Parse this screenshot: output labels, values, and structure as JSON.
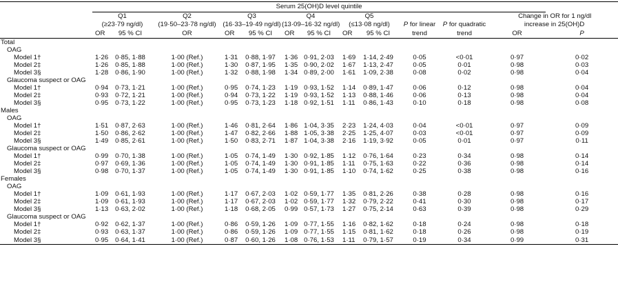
{
  "header": {
    "group_title": "Serum 25(OH)D level quintile",
    "q1": {
      "name": "Q1",
      "range": "(≥23·79 ng/dl)"
    },
    "q2": {
      "name": "Q2",
      "range": "(19·50–23·78 ng/dl)"
    },
    "q3": {
      "name": "Q3",
      "range": "(16·33–19·49 ng/dl)"
    },
    "q4": {
      "name": "Q4",
      "range": "(13·09–16·32 ng/dl)"
    },
    "q5": {
      "name": "Q5",
      "range": "(≤13·08 ng/dl)"
    },
    "p_letter": "P",
    "p_linear_line1": "for linear",
    "p_linear_line2": "trend",
    "p_quad_line1": "for quadratic",
    "p_quad_line2": "trend",
    "change_line1": "Change in OR for 1 ng/dl",
    "change_line2": "increase in 25(OH)D",
    "or_label": "OR",
    "ci_label": "95 % CI"
  },
  "rows": [
    {
      "kind": "group",
      "label": "Total"
    },
    {
      "kind": "sub",
      "label": "OAG"
    },
    {
      "kind": "data",
      "label": "Model 1†",
      "q1_or": "1·26",
      "q1_ci": "0·85, 1·88",
      "q2": "1·00 (Ref.)",
      "q3_or": "1·31",
      "q3_ci": "0·88, 1·97",
      "q4_or": "1·36",
      "q4_ci": "0·91, 2·03",
      "q5_or": "1·69",
      "q5_ci": "1·14, 2·49",
      "p_lin": "0·05",
      "p_quad": "<0·01",
      "chg_or": "0·97",
      "chg_p": "0·02"
    },
    {
      "kind": "data",
      "label": "Model 2‡",
      "q1_or": "1·26",
      "q1_ci": "0·85, 1·88",
      "q2": "1·00 (Ref.)",
      "q3_or": "1·30",
      "q3_ci": "0·87, 1·95",
      "q4_or": "1·35",
      "q4_ci": "0·90, 2·02",
      "q5_or": "1·67",
      "q5_ci": "1·13, 2·47",
      "p_lin": "0·05",
      "p_quad": "0·01",
      "chg_or": "0·98",
      "chg_p": "0·03"
    },
    {
      "kind": "data",
      "label": "Model 3§",
      "q1_or": "1·28",
      "q1_ci": "0·86, 1·90",
      "q2": "1·00 (Ref.)",
      "q3_or": "1·32",
      "q3_ci": "0·88, 1·98",
      "q4_or": "1·34",
      "q4_ci": "0·89, 2·00",
      "q5_or": "1·61",
      "q5_ci": "1·09, 2·38",
      "p_lin": "0·08",
      "p_quad": "0·02",
      "chg_or": "0·98",
      "chg_p": "0·04"
    },
    {
      "kind": "sub",
      "label": "Glaucoma suspect or OAG"
    },
    {
      "kind": "data",
      "label": "Model 1†",
      "q1_or": "0·94",
      "q1_ci": "0·73, 1·21",
      "q2": "1·00 (Ref.)",
      "q3_or": "0·95",
      "q3_ci": "0·74, 1·23",
      "q4_or": "1·19",
      "q4_ci": "0·93, 1·52",
      "q5_or": "1·14",
      "q5_ci": "0·89, 1·47",
      "p_lin": "0·06",
      "p_quad": "0·12",
      "chg_or": "0·98",
      "chg_p": "0·04"
    },
    {
      "kind": "data",
      "label": "Model 2‡",
      "q1_or": "0·93",
      "q1_ci": "0·72, 1·21",
      "q2": "1·00 (Ref.)",
      "q3_or": "0·94",
      "q3_ci": "0·73, 1·22",
      "q4_or": "1·19",
      "q4_ci": "0·93, 1·52",
      "q5_or": "1·13",
      "q5_ci": "0·88, 1·46",
      "p_lin": "0·06",
      "p_quad": "0·13",
      "chg_or": "0·98",
      "chg_p": "0·04"
    },
    {
      "kind": "data",
      "label": "Model 3§",
      "q1_or": "0·95",
      "q1_ci": "0·73, 1·22",
      "q2": "1·00 (Ref.)",
      "q3_or": "0·95",
      "q3_ci": "0·73, 1·23",
      "q4_or": "1·18",
      "q4_ci": "0·92, 1·51",
      "q5_or": "1·11",
      "q5_ci": "0·86, 1·43",
      "p_lin": "0·10",
      "p_quad": "0·18",
      "chg_or": "0·98",
      "chg_p": "0·08"
    },
    {
      "kind": "group",
      "label": "Males"
    },
    {
      "kind": "sub",
      "label": "OAG"
    },
    {
      "kind": "data",
      "label": "Model 1†",
      "q1_or": "1·51",
      "q1_ci": "0·87, 2·63",
      "q2": "1·00 (Ref.)",
      "q3_or": "1·46",
      "q3_ci": "0·81, 2·64",
      "q4_or": "1·86",
      "q4_ci": "1·04, 3·35",
      "q5_or": "2·23",
      "q5_ci": "1·24, 4·03",
      "p_lin": "0·04",
      "p_quad": "<0·01",
      "chg_or": "0·97",
      "chg_p": "0·09"
    },
    {
      "kind": "data",
      "label": "Model 2‡",
      "q1_or": "1·50",
      "q1_ci": "0·86, 2·62",
      "q2": "1·00 (Ref.)",
      "q3_or": "1·47",
      "q3_ci": "0·82, 2·66",
      "q4_or": "1·88",
      "q4_ci": "1·05, 3·38",
      "q5_or": "2·25",
      "q5_ci": "1·25, 4·07",
      "p_lin": "0·03",
      "p_quad": "<0·01",
      "chg_or": "0·97",
      "chg_p": "0·09"
    },
    {
      "kind": "data",
      "label": "Model 3§",
      "q1_or": "1·49",
      "q1_ci": "0·85, 2·61",
      "q2": "1·00 (Ref.)",
      "q3_or": "1·50",
      "q3_ci": "0·83, 2·71",
      "q4_or": "1·87",
      "q4_ci": "1·04, 3·38",
      "q5_or": "2·16",
      "q5_ci": "1·19, 3·92",
      "p_lin": "0·05",
      "p_quad": "0·01",
      "chg_or": "0·97",
      "chg_p": "0·11"
    },
    {
      "kind": "sub",
      "label": "Glaucoma suspect or OAG"
    },
    {
      "kind": "data",
      "label": "Model 1†",
      "q1_or": "0·99",
      "q1_ci": "0·70, 1·38",
      "q2": "1·00 (Ref.)",
      "q3_or": "1·05",
      "q3_ci": "0·74, 1·49",
      "q4_or": "1·30",
      "q4_ci": "0·92, 1·85",
      "q5_or": "1·12",
      "q5_ci": "0·76, 1·64",
      "p_lin": "0·23",
      "p_quad": "0·34",
      "chg_or": "0·98",
      "chg_p": "0·14"
    },
    {
      "kind": "data",
      "label": "Model 2‡",
      "q1_or": "0·97",
      "q1_ci": "0·69, 1·36",
      "q2": "1·00 (Ref.)",
      "q3_or": "1·05",
      "q3_ci": "0·74, 1·49",
      "q4_or": "1·30",
      "q4_ci": "0·91, 1·85",
      "q5_or": "1·11",
      "q5_ci": "0·75, 1·63",
      "p_lin": "0·22",
      "p_quad": "0·36",
      "chg_or": "0·98",
      "chg_p": "0·14"
    },
    {
      "kind": "data",
      "label": "Model 3§",
      "q1_or": "0·98",
      "q1_ci": "0·70, 1·37",
      "q2": "1·00 (Ref.)",
      "q3_or": "1·05",
      "q3_ci": "0·74, 1·49",
      "q4_or": "1·30",
      "q4_ci": "0·91, 1·85",
      "q5_or": "1·10",
      "q5_ci": "0·74, 1·62",
      "p_lin": "0·25",
      "p_quad": "0·38",
      "chg_or": "0·98",
      "chg_p": "0·16"
    },
    {
      "kind": "group",
      "label": "Females"
    },
    {
      "kind": "sub",
      "label": "OAG"
    },
    {
      "kind": "data",
      "label": "Model 1†",
      "q1_or": "1·09",
      "q1_ci": "0·61, 1·93",
      "q2": "1·00 (Ref.)",
      "q3_or": "1·17",
      "q3_ci": "0·67, 2·03",
      "q4_or": "1·02",
      "q4_ci": "0·59, 1·77",
      "q5_or": "1·35",
      "q5_ci": "0·81, 2·26",
      "p_lin": "0·38",
      "p_quad": "0·28",
      "chg_or": "0·98",
      "chg_p": "0·16"
    },
    {
      "kind": "data",
      "label": "Model 2‡",
      "q1_or": "1·09",
      "q1_ci": "0·61, 1·93",
      "q2": "1·00 (Ref.)",
      "q3_or": "1·17",
      "q3_ci": "0·67, 2·03",
      "q4_or": "1·02",
      "q4_ci": "0·59, 1·77",
      "q5_or": "1·32",
      "q5_ci": "0·79, 2·22",
      "p_lin": "0·41",
      "p_quad": "0·30",
      "chg_or": "0·98",
      "chg_p": "0·17"
    },
    {
      "kind": "data",
      "label": "Model 3§",
      "q1_or": "1·13",
      "q1_ci": "0·63, 2·02",
      "q2": "1·00 (Ref.)",
      "q3_or": "1·18",
      "q3_ci": "0·68, 2·05",
      "q4_or": "0·99",
      "q4_ci": "0·57, 1·73",
      "q5_or": "1·27",
      "q5_ci": "0·75, 2·14",
      "p_lin": "0·63",
      "p_quad": "0·39",
      "chg_or": "0·98",
      "chg_p": "0·29"
    },
    {
      "kind": "sub",
      "label": "Glaucoma suspect or OAG"
    },
    {
      "kind": "data",
      "label": "Model 1†",
      "q1_or": "0·92",
      "q1_ci": "0·62, 1·37",
      "q2": "1·00 (Ref.)",
      "q3_or": "0·86",
      "q3_ci": "0·59, 1·26",
      "q4_or": "1·09",
      "q4_ci": "0·77, 1·55",
      "q5_or": "1·16",
      "q5_ci": "0·82, 1·62",
      "p_lin": "0·18",
      "p_quad": "0·24",
      "chg_or": "0·98",
      "chg_p": "0·18"
    },
    {
      "kind": "data",
      "label": "Model 2‡",
      "q1_or": "0·93",
      "q1_ci": "0·63, 1·37",
      "q2": "1·00 (Ref.)",
      "q3_or": "0·86",
      "q3_ci": "0·59, 1·26",
      "q4_or": "1·09",
      "q4_ci": "0·77, 1·55",
      "q5_or": "1·15",
      "q5_ci": "0·81, 1·62",
      "p_lin": "0·18",
      "p_quad": "0·26",
      "chg_or": "0·98",
      "chg_p": "0·19"
    },
    {
      "kind": "data",
      "label": "Model 3§",
      "q1_or": "0·95",
      "q1_ci": "0·64, 1·41",
      "q2": "1·00 (Ref.)",
      "q3_or": "0·87",
      "q3_ci": "0·60, 1·26",
      "q4_or": "1·08",
      "q4_ci": "0·76, 1·53",
      "q5_or": "1·11",
      "q5_ci": "0·79, 1·57",
      "p_lin": "0·19",
      "p_quad": "0·34",
      "chg_or": "0·99",
      "chg_p": "0·31"
    }
  ]
}
